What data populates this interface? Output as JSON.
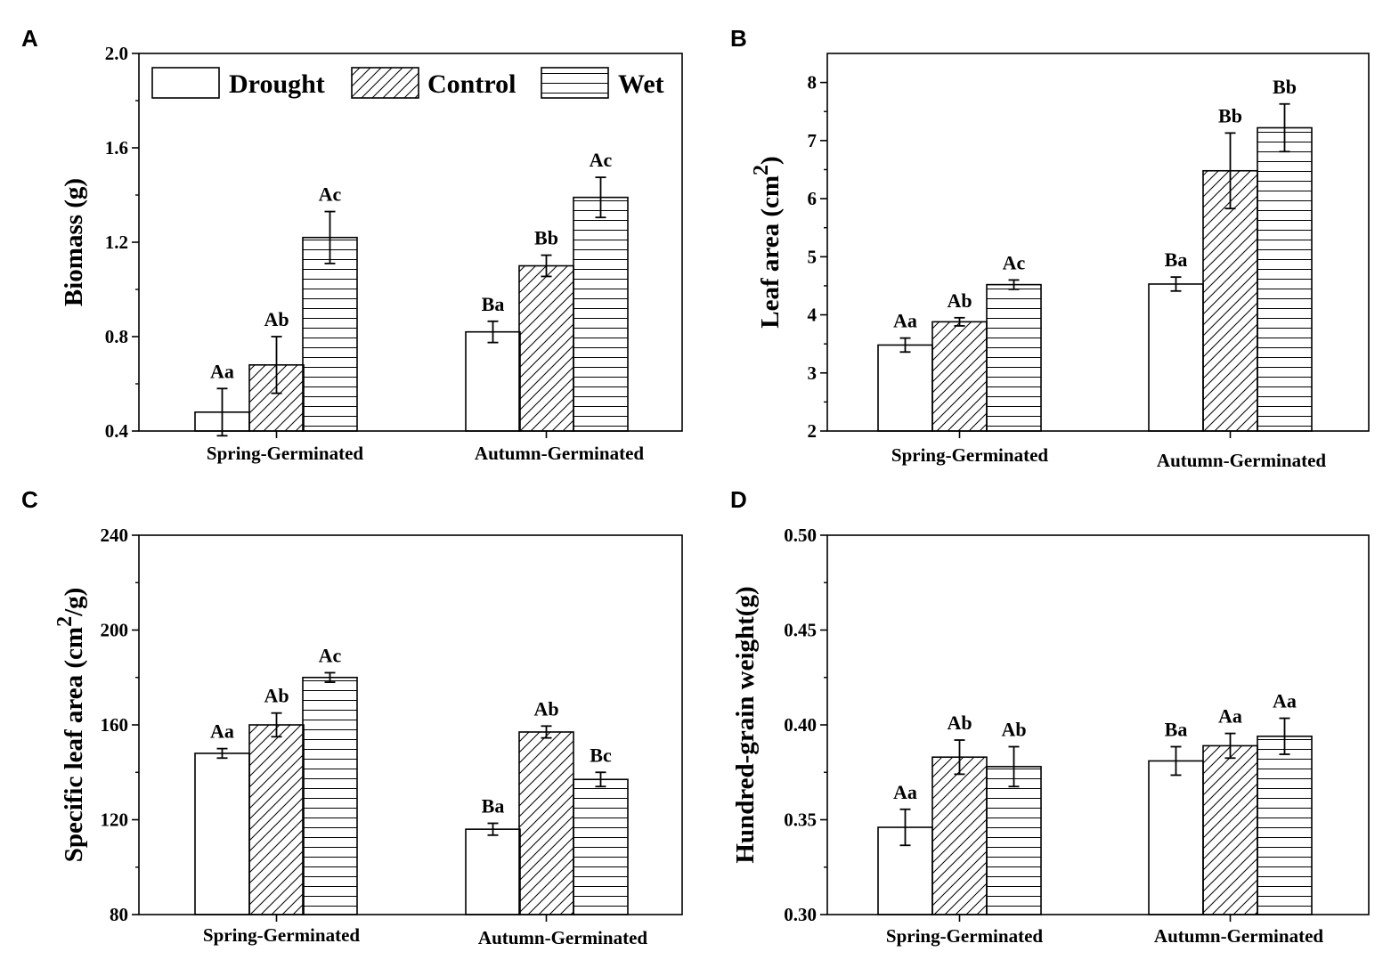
{
  "legend": [
    "Drought",
    "Control",
    "Wet"
  ],
  "chart_data": [
    {
      "type": "bar",
      "panel": "A",
      "ylabel": "Biomass (g)",
      "ylim": [
        0.4,
        2.0
      ],
      "yticks": [
        "0.4",
        "0.8",
        "1.2",
        "1.6",
        "2.0"
      ],
      "categories": [
        "Spring-Germinated",
        "Autumn-Germinated"
      ],
      "series": [
        {
          "name": "Drought",
          "values": [
            0.48,
            0.82
          ],
          "errors": [
            0.1,
            0.045
          ],
          "labels": [
            "Aa",
            "Ba"
          ]
        },
        {
          "name": "Control",
          "values": [
            0.68,
            1.1
          ],
          "errors": [
            0.12,
            0.045
          ],
          "labels": [
            "Ab",
            "Bb"
          ]
        },
        {
          "name": "Wet",
          "values": [
            1.22,
            1.39
          ],
          "errors": [
            0.11,
            0.085
          ],
          "labels": [
            "Ac",
            "Ac"
          ]
        }
      ]
    },
    {
      "type": "bar",
      "panel": "B",
      "ylabel": "Leaf area (cm",
      "ylabel_sup": "2",
      "ylabel_end": ")",
      "ylim": [
        2,
        8.5
      ],
      "yticks": [
        "2",
        "3",
        "4",
        "5",
        "6",
        "7",
        "8"
      ],
      "categories": [
        "Spring-Germinated",
        "Autumn-Germinated"
      ],
      "series": [
        {
          "name": "Drought",
          "values": [
            3.48,
            4.53
          ],
          "errors": [
            0.12,
            0.12
          ],
          "labels": [
            "Aa",
            "Ba"
          ]
        },
        {
          "name": "Control",
          "values": [
            3.88,
            6.48
          ],
          "errors": [
            0.07,
            0.65
          ],
          "labels": [
            "Ab",
            "Bb"
          ]
        },
        {
          "name": "Wet",
          "values": [
            4.52,
            7.22
          ],
          "errors": [
            0.08,
            0.41
          ],
          "labels": [
            "Ac",
            "Bb"
          ]
        }
      ]
    },
    {
      "type": "bar",
      "panel": "C",
      "ylabel": "Specific leaf area (cm",
      "ylabel_sup": "2",
      "ylabel_end": "/g)",
      "ylim": [
        80,
        240
      ],
      "yticks": [
        "80",
        "120",
        "160",
        "200",
        "240"
      ],
      "categories": [
        "Spring-Germinated",
        "Autumn-Germinated"
      ],
      "series": [
        {
          "name": "Drought",
          "values": [
            148,
            116
          ],
          "errors": [
            2,
            2.5
          ],
          "labels": [
            "Aa",
            "Ba"
          ]
        },
        {
          "name": "Control",
          "values": [
            160,
            157
          ],
          "errors": [
            5,
            2.5
          ],
          "labels": [
            "Ab",
            "Ab"
          ]
        },
        {
          "name": "Wet",
          "values": [
            180,
            137
          ],
          "errors": [
            2,
            3
          ],
          "labels": [
            "Ac",
            "Bc"
          ]
        }
      ]
    },
    {
      "type": "bar",
      "panel": "D",
      "ylabel": "Hundred-grain weight(g)",
      "ylim": [
        0.3,
        0.5
      ],
      "yticks": [
        "0.30",
        "0.35",
        "0.40",
        "0.45",
        "0.50"
      ],
      "categories": [
        "Spring-Germinated",
        "Autumn-Germinated"
      ],
      "series": [
        {
          "name": "Drought",
          "values": [
            0.346,
            0.381
          ],
          "errors": [
            0.0095,
            0.0075
          ],
          "labels": [
            "Aa",
            "Ba"
          ]
        },
        {
          "name": "Control",
          "values": [
            0.383,
            0.389
          ],
          "errors": [
            0.009,
            0.0065
          ],
          "labels": [
            "Ab",
            "Aa"
          ]
        },
        {
          "name": "Wet",
          "values": [
            0.378,
            0.394
          ],
          "errors": [
            0.0105,
            0.0095
          ],
          "labels": [
            "Ab",
            "Aa"
          ]
        }
      ]
    }
  ]
}
